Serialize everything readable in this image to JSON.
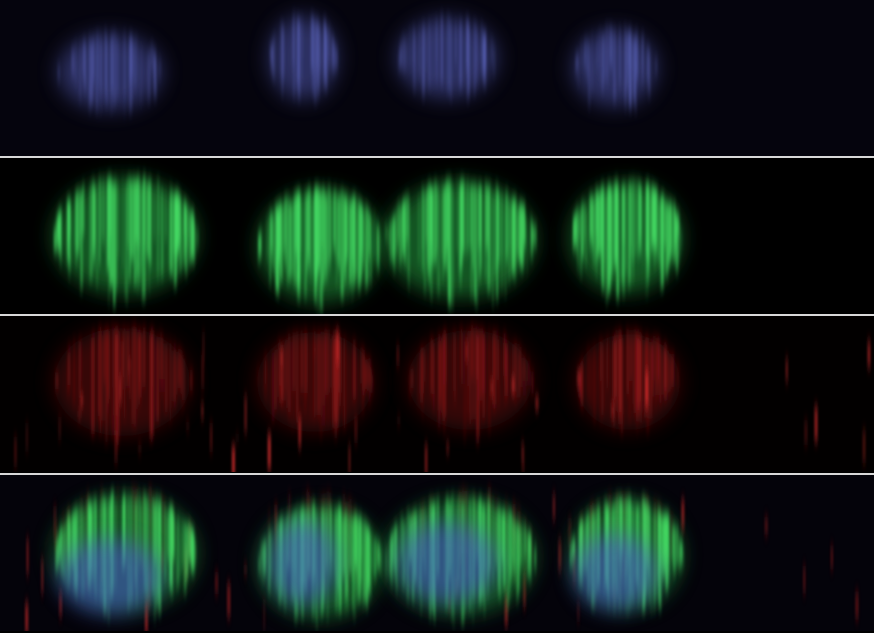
{
  "figure": {
    "panels": [
      {
        "channel": "blue",
        "color": "#5a64c8",
        "background": "#05040d"
      },
      {
        "channel": "green",
        "color": "#3ccf5a",
        "background": "#000000"
      },
      {
        "channel": "red",
        "color": "#c8282a",
        "background": "#020000"
      },
      {
        "channel": "merge",
        "color": "#3ccf5a",
        "background": "#04030a"
      }
    ],
    "divider_color": "#d8d8d8"
  }
}
